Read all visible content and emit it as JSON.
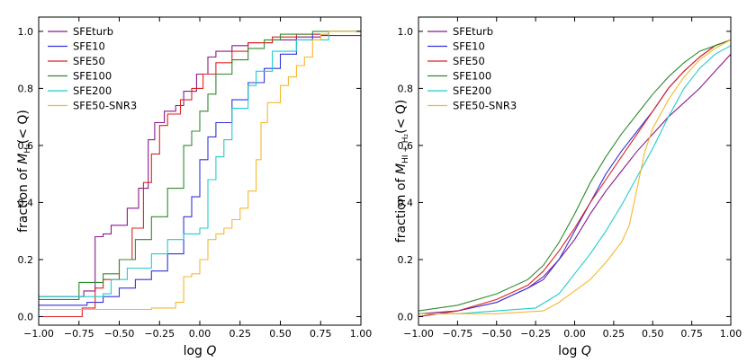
{
  "chart_data": [
    {
      "type": "line",
      "panel": "left",
      "xlabel_text": "log",
      "xlabel_var": "Q",
      "ylabel": {
        "prefix": "fraction of ",
        "M": "M",
        "sub": "H₂",
        "suffix": "(< Q)"
      },
      "xlim": [
        -1.0,
        1.0
      ],
      "ylim": [
        -0.03,
        1.05
      ],
      "xticks": [
        -1.0,
        -0.75,
        -0.5,
        -0.25,
        0.0,
        0.25,
        0.5,
        0.75,
        1.0
      ],
      "xtick_labels": [
        "−1.00",
        "−0.75",
        "−0.50",
        "−0.25",
        "0.00",
        "0.25",
        "0.50",
        "0.75",
        "1.00"
      ],
      "yticks": [
        0.0,
        0.2,
        0.4,
        0.6,
        0.8,
        1.0
      ],
      "ytick_labels": [
        "0.0",
        "0.2",
        "0.4",
        "0.6",
        "0.8",
        "1.0"
      ],
      "legend_position": "upper-left",
      "series": [
        {
          "name": "SFEturb",
          "color": "#8b1a8b",
          "step": true,
          "x": [
            -1.0,
            -0.72,
            -0.65,
            -0.65,
            -0.6,
            -0.55,
            -0.45,
            -0.38,
            -0.32,
            -0.28,
            -0.22,
            -0.15,
            -0.1,
            -0.02,
            0.05,
            0.1,
            0.2,
            0.3,
            0.45,
            0.6,
            0.75,
            1.0
          ],
          "y": [
            0.07,
            0.09,
            0.1,
            0.28,
            0.29,
            0.32,
            0.38,
            0.45,
            0.62,
            0.68,
            0.72,
            0.74,
            0.79,
            0.85,
            0.91,
            0.93,
            0.95,
            0.96,
            0.97,
            0.98,
            0.985,
            0.985
          ]
        },
        {
          "name": "SFE10",
          "color": "#3333dd",
          "step": true,
          "x": [
            -1.0,
            -0.7,
            -0.6,
            -0.5,
            -0.4,
            -0.3,
            -0.2,
            -0.1,
            -0.05,
            0.0,
            0.05,
            0.1,
            0.2,
            0.3,
            0.4,
            0.5,
            0.6,
            0.7,
            0.8,
            1.0
          ],
          "y": [
            0.04,
            0.05,
            0.07,
            0.1,
            0.13,
            0.16,
            0.22,
            0.35,
            0.42,
            0.55,
            0.63,
            0.68,
            0.76,
            0.82,
            0.87,
            0.92,
            0.97,
            0.99,
            1.0,
            1.0
          ]
        },
        {
          "name": "SFE50",
          "color": "#dd2222",
          "step": true,
          "x": [
            -1.0,
            -0.8,
            -0.73,
            -0.65,
            -0.6,
            -0.5,
            -0.42,
            -0.35,
            -0.3,
            -0.25,
            -0.2,
            -0.12,
            -0.05,
            0.02,
            0.1,
            0.2,
            0.3,
            0.45,
            0.6,
            0.8,
            1.0
          ],
          "y": [
            0.0,
            0.0,
            0.03,
            0.1,
            0.13,
            0.2,
            0.31,
            0.47,
            0.57,
            0.67,
            0.71,
            0.76,
            0.8,
            0.85,
            0.89,
            0.93,
            0.96,
            0.98,
            0.99,
            1.0,
            1.0
          ]
        },
        {
          "name": "SFE100",
          "color": "#2e8b2e",
          "step": true,
          "x": [
            -1.0,
            -0.75,
            -0.6,
            -0.5,
            -0.4,
            -0.3,
            -0.2,
            -0.1,
            -0.05,
            0.0,
            0.05,
            0.1,
            0.2,
            0.3,
            0.4,
            0.5,
            0.7,
            1.0
          ],
          "y": [
            0.06,
            0.12,
            0.15,
            0.2,
            0.27,
            0.35,
            0.45,
            0.6,
            0.65,
            0.72,
            0.78,
            0.85,
            0.9,
            0.94,
            0.97,
            0.99,
            1.0,
            1.0
          ]
        },
        {
          "name": "SFE200",
          "color": "#22cccc",
          "step": true,
          "x": [
            -1.0,
            -0.6,
            -0.55,
            -0.45,
            -0.3,
            -0.2,
            -0.1,
            0.0,
            0.05,
            0.1,
            0.15,
            0.2,
            0.3,
            0.35,
            0.45,
            0.6,
            0.8,
            1.0
          ],
          "y": [
            0.07,
            0.08,
            0.13,
            0.17,
            0.22,
            0.27,
            0.29,
            0.31,
            0.48,
            0.56,
            0.62,
            0.73,
            0.81,
            0.86,
            0.93,
            0.97,
            1.0,
            1.0
          ]
        },
        {
          "name": "SFE50-SNR3",
          "color": "#f5b82e",
          "step": true,
          "x": [
            -1.0,
            -0.3,
            -0.15,
            -0.1,
            -0.05,
            0.0,
            0.05,
            0.1,
            0.15,
            0.2,
            0.25,
            0.3,
            0.35,
            0.38,
            0.42,
            0.5,
            0.55,
            0.6,
            0.65,
            0.7,
            0.75,
            0.8,
            1.0
          ],
          "y": [
            0.025,
            0.03,
            0.05,
            0.14,
            0.15,
            0.2,
            0.27,
            0.29,
            0.31,
            0.34,
            0.38,
            0.44,
            0.55,
            0.68,
            0.75,
            0.81,
            0.84,
            0.88,
            0.91,
            0.97,
            0.99,
            1.0,
            1.0
          ]
        }
      ]
    },
    {
      "type": "line",
      "panel": "right",
      "xlabel_text": "log",
      "xlabel_var": "Q",
      "ylabel": {
        "prefix": "fraction of ",
        "M": "M",
        "sub": "HI + H₂",
        "suffix": "(< Q)"
      },
      "xlim": [
        -1.0,
        1.0
      ],
      "ylim": [
        -0.03,
        1.05
      ],
      "xticks": [
        -1.0,
        -0.75,
        -0.5,
        -0.25,
        0.0,
        0.25,
        0.5,
        0.75,
        1.0
      ],
      "xtick_labels": [
        "−1.00",
        "−0.75",
        "−0.50",
        "−0.25",
        "0.00",
        "0.25",
        "0.50",
        "0.75",
        "1.00"
      ],
      "yticks": [
        0.0,
        0.2,
        0.4,
        0.6,
        0.8,
        1.0
      ],
      "ytick_labels": [
        "0.0",
        "0.2",
        "0.4",
        "0.6",
        "0.8",
        "1.0"
      ],
      "legend_position": "upper-left",
      "series": [
        {
          "name": "SFEturb",
          "color": "#8b1a8b",
          "step": false,
          "x": [
            -1.0,
            -0.75,
            -0.5,
            -0.3,
            -0.2,
            -0.1,
            0.0,
            0.1,
            0.2,
            0.3,
            0.4,
            0.5,
            0.6,
            0.7,
            0.8,
            0.9,
            1.0
          ],
          "y": [
            0.01,
            0.02,
            0.05,
            0.1,
            0.14,
            0.2,
            0.27,
            0.36,
            0.44,
            0.51,
            0.58,
            0.64,
            0.7,
            0.75,
            0.8,
            0.86,
            0.92
          ]
        },
        {
          "name": "SFE10",
          "color": "#3333dd",
          "step": false,
          "x": [
            -1.0,
            -0.75,
            -0.5,
            -0.3,
            -0.2,
            -0.1,
            0.0,
            0.1,
            0.2,
            0.3,
            0.4,
            0.5,
            0.6,
            0.7,
            0.8,
            0.9,
            1.0
          ],
          "y": [
            0.0,
            0.02,
            0.05,
            0.1,
            0.13,
            0.2,
            0.3,
            0.4,
            0.5,
            0.58,
            0.65,
            0.72,
            0.8,
            0.86,
            0.91,
            0.95,
            0.97
          ]
        },
        {
          "name": "SFE50",
          "color": "#dd2222",
          "step": false,
          "x": [
            -1.0,
            -0.75,
            -0.5,
            -0.3,
            -0.2,
            -0.1,
            0.0,
            0.1,
            0.2,
            0.3,
            0.4,
            0.5,
            0.6,
            0.7,
            0.8,
            0.9,
            1.0
          ],
          "y": [
            0.0,
            0.02,
            0.06,
            0.11,
            0.16,
            0.23,
            0.31,
            0.4,
            0.48,
            0.56,
            0.64,
            0.72,
            0.8,
            0.86,
            0.91,
            0.95,
            0.97
          ]
        },
        {
          "name": "SFE100",
          "color": "#2e8b2e",
          "step": false,
          "x": [
            -1.0,
            -0.75,
            -0.5,
            -0.3,
            -0.2,
            -0.1,
            0.0,
            0.1,
            0.2,
            0.3,
            0.4,
            0.5,
            0.6,
            0.7,
            0.8,
            0.9,
            1.0
          ],
          "y": [
            0.02,
            0.04,
            0.08,
            0.13,
            0.18,
            0.26,
            0.36,
            0.47,
            0.56,
            0.64,
            0.71,
            0.78,
            0.84,
            0.89,
            0.93,
            0.95,
            0.97
          ]
        },
        {
          "name": "SFE200",
          "color": "#22cccc",
          "step": false,
          "x": [
            -1.0,
            -0.75,
            -0.5,
            -0.25,
            -0.1,
            0.0,
            0.1,
            0.2,
            0.3,
            0.4,
            0.5,
            0.6,
            0.7,
            0.8,
            0.9,
            1.0
          ],
          "y": [
            0.01,
            0.01,
            0.02,
            0.03,
            0.08,
            0.15,
            0.22,
            0.3,
            0.39,
            0.49,
            0.59,
            0.7,
            0.8,
            0.87,
            0.92,
            0.95
          ]
        },
        {
          "name": "SFE50-SNR3",
          "color": "#f5b82e",
          "step": false,
          "x": [
            -1.0,
            -0.5,
            -0.2,
            -0.1,
            0.0,
            0.1,
            0.2,
            0.3,
            0.35,
            0.4,
            0.45,
            0.5,
            0.6,
            0.7,
            0.8,
            0.9,
            1.0
          ],
          "y": [
            0.01,
            0.01,
            0.02,
            0.05,
            0.09,
            0.13,
            0.19,
            0.26,
            0.32,
            0.45,
            0.58,
            0.66,
            0.76,
            0.84,
            0.9,
            0.94,
            0.97
          ]
        }
      ]
    }
  ]
}
